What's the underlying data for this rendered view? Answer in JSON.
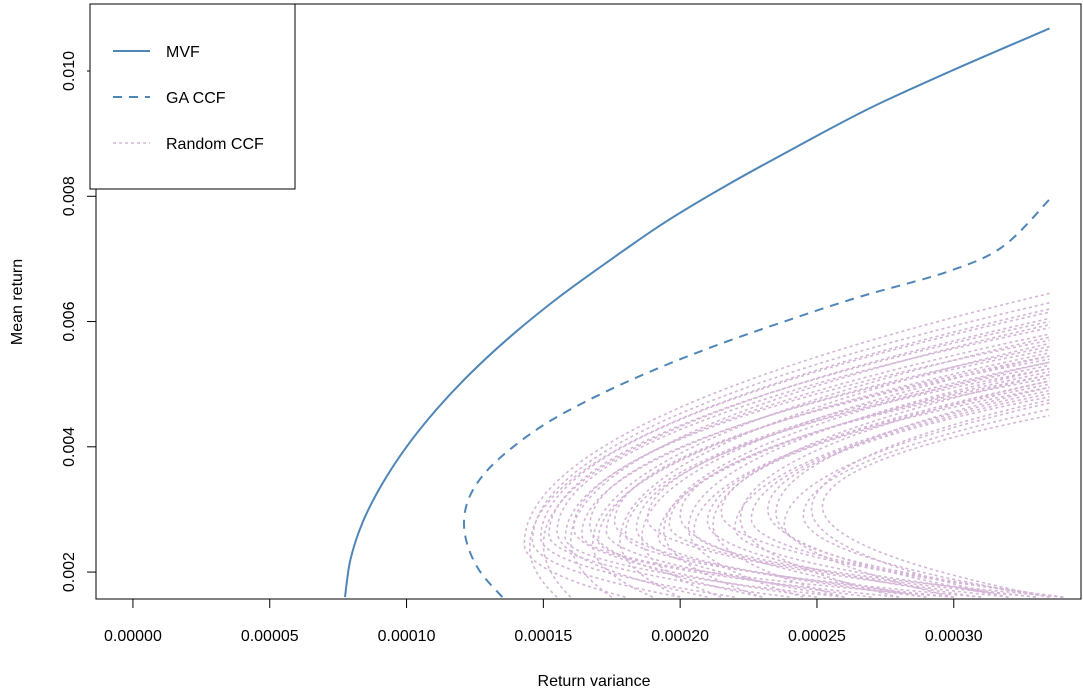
{
  "chart_data": {
    "type": "line",
    "title": "",
    "xlabel": "Return variance",
    "ylabel": "Mean return",
    "xlim": [
      -1.35e-05,
      0.0003465
    ],
    "ylim": [
      0.00157,
      0.01107
    ],
    "x_ticks": [
      0.0,
      5e-05,
      0.0001,
      0.00015,
      0.0002,
      0.00025,
      0.0003
    ],
    "x_tick_labels": [
      "0.00000",
      "0.00005",
      "0.00010",
      "0.00015",
      "0.00020",
      "0.00025",
      "0.00030"
    ],
    "y_ticks": [
      0.002,
      0.004,
      0.006,
      0.008,
      0.01
    ],
    "y_tick_labels": [
      "0.002",
      "0.004",
      "0.006",
      "0.008",
      "0.010"
    ],
    "grid": false,
    "legend_position": "top-left",
    "series": [
      {
        "name": "MVF",
        "style": "solid",
        "color": "#4f86b8",
        "points": [
          [
            7.75e-05,
            0.0016
          ],
          [
            7.95e-05,
            0.0022
          ],
          [
            8.4e-05,
            0.0028
          ],
          [
            9.1e-05,
            0.0034
          ],
          [
            0.0001,
            0.004
          ],
          [
            0.000111,
            0.0046
          ],
          [
            0.000124,
            0.0052
          ],
          [
            0.000139,
            0.0058
          ],
          [
            0.000156,
            0.0064
          ],
          [
            0.000175,
            0.007
          ],
          [
            0.000195,
            0.0076
          ],
          [
            0.000218,
            0.0082
          ],
          [
            0.000243,
            0.0088
          ],
          [
            0.000269,
            0.0094
          ],
          [
            0.000299,
            0.01
          ],
          [
            0.000335,
            0.01068
          ]
        ]
      },
      {
        "name": "GA CCF",
        "style": "dashed",
        "color": "#4f86b8",
        "points": [
          [
            0.000135,
            0.0016
          ],
          [
            0.000127,
            0.002
          ],
          [
            0.0001225,
            0.0024
          ],
          [
            0.000121,
            0.0028
          ],
          [
            0.000123,
            0.0032
          ],
          [
            0.000129,
            0.0036
          ],
          [
            0.000139,
            0.004
          ],
          [
            0.000152,
            0.0044
          ],
          [
            0.000169,
            0.0048
          ],
          [
            0.000189,
            0.0052
          ],
          [
            0.000212,
            0.0056
          ],
          [
            0.000238,
            0.006
          ],
          [
            0.000266,
            0.0064
          ],
          [
            0.000298,
            0.0068
          ],
          [
            0.000318,
            0.0072
          ],
          [
            0.000335,
            0.00795
          ]
        ]
      },
      {
        "name": "Random CCF",
        "style": "dotted",
        "color": "#d4b6d6",
        "curves": [
          {
            "vmin": 0.000143,
            "m0": 0.00245,
            "end_v": 0.000335,
            "end_m": 0.00645,
            "bottom_v": 0.00018
          },
          {
            "vmin": 0.000146,
            "m0": 0.0025,
            "end_v": 0.000335,
            "end_m": 0.0063,
            "bottom_v": 0.0002
          },
          {
            "vmin": 0.000149,
            "m0": 0.00255,
            "end_v": 0.000335,
            "end_m": 0.00615,
            "bottom_v": 0.00022
          },
          {
            "vmin": 0.000152,
            "m0": 0.0026,
            "end_v": 0.000335,
            "end_m": 0.006,
            "bottom_v": 0.00024
          },
          {
            "vmin": 0.000155,
            "m0": 0.00265,
            "end_v": 0.000335,
            "end_m": 0.0059,
            "bottom_v": 0.00021
          },
          {
            "vmin": 0.000158,
            "m0": 0.00255,
            "end_v": 0.000335,
            "end_m": 0.0058,
            "bottom_v": 0.00026
          },
          {
            "vmin": 0.000161,
            "m0": 0.0027,
            "end_v": 0.000335,
            "end_m": 0.0057,
            "bottom_v": 0.00025
          },
          {
            "vmin": 0.000164,
            "m0": 0.0026,
            "end_v": 0.000335,
            "end_m": 0.0056,
            "bottom_v": 0.00028
          },
          {
            "vmin": 0.000167,
            "m0": 0.00275,
            "end_v": 0.000335,
            "end_m": 0.00555,
            "bottom_v": 0.00023
          },
          {
            "vmin": 0.00017,
            "m0": 0.0025,
            "end_v": 0.000335,
            "end_m": 0.0055,
            "bottom_v": 0.0003
          },
          {
            "vmin": 0.000173,
            "m0": 0.00265,
            "end_v": 0.000335,
            "end_m": 0.00545,
            "bottom_v": 0.00027
          },
          {
            "vmin": 0.000176,
            "m0": 0.0028,
            "end_v": 0.000335,
            "end_m": 0.0054,
            "bottom_v": 0.00029
          },
          {
            "vmin": 0.00018,
            "m0": 0.0026,
            "end_v": 0.000335,
            "end_m": 0.00535,
            "bottom_v": 0.00031
          },
          {
            "vmin": 0.000184,
            "m0": 0.0027,
            "end_v": 0.000335,
            "end_m": 0.0053,
            "bottom_v": 0.00026
          },
          {
            "vmin": 0.000188,
            "m0": 0.00285,
            "end_v": 0.000335,
            "end_m": 0.00525,
            "bottom_v": 0.00032
          },
          {
            "vmin": 0.000192,
            "m0": 0.00255,
            "end_v": 0.000335,
            "end_m": 0.0052,
            "bottom_v": 0.0003
          },
          {
            "vmin": 0.000196,
            "m0": 0.00275,
            "end_v": 0.000335,
            "end_m": 0.00515,
            "bottom_v": 0.00033
          },
          {
            "vmin": 0.0002,
            "m0": 0.0029,
            "end_v": 0.000335,
            "end_m": 0.0051,
            "bottom_v": 0.00029
          },
          {
            "vmin": 0.000205,
            "m0": 0.00265,
            "end_v": 0.000335,
            "end_m": 0.00505,
            "bottom_v": 0.00034
          },
          {
            "vmin": 0.00021,
            "m0": 0.0028,
            "end_v": 0.000335,
            "end_m": 0.005,
            "bottom_v": 0.00031
          },
          {
            "vmin": 0.000215,
            "m0": 0.00295,
            "end_v": 0.000335,
            "end_m": 0.00495,
            "bottom_v": 0.00034
          },
          {
            "vmin": 0.00022,
            "m0": 0.0027,
            "end_v": 0.000335,
            "end_m": 0.0049,
            "bottom_v": 0.00033
          },
          {
            "vmin": 0.000226,
            "m0": 0.00285,
            "end_v": 0.000335,
            "end_m": 0.00485,
            "bottom_v": 0.00034
          },
          {
            "vmin": 0.000232,
            "m0": 0.003,
            "end_v": 0.000335,
            "end_m": 0.0048,
            "bottom_v": 0.00032
          },
          {
            "vmin": 0.000238,
            "m0": 0.00275,
            "end_v": 0.000335,
            "end_m": 0.0047,
            "bottom_v": 0.00034
          },
          {
            "vmin": 0.000245,
            "m0": 0.0029,
            "end_v": 0.000335,
            "end_m": 0.0046,
            "bottom_v": 0.000335
          },
          {
            "vmin": 0.000252,
            "m0": 0.00305,
            "end_v": 0.000335,
            "end_m": 0.0045,
            "bottom_v": 0.000335
          },
          {
            "vmin": 0.000145,
            "m0": 0.0024,
            "end_v": 0.000335,
            "end_m": 0.0062,
            "bottom_v": 0.000155
          },
          {
            "vmin": 0.00015,
            "m0": 0.00245,
            "end_v": 0.000335,
            "end_m": 0.00605,
            "bottom_v": 0.00016
          },
          {
            "vmin": 0.00016,
            "m0": 0.0025,
            "end_v": 0.000335,
            "end_m": 0.00595,
            "bottom_v": 0.000175
          },
          {
            "vmin": 0.000168,
            "m0": 0.00245,
            "end_v": 0.000335,
            "end_m": 0.00575,
            "bottom_v": 0.00019
          },
          {
            "vmin": 0.000178,
            "m0": 0.0025,
            "end_v": 0.000335,
            "end_m": 0.00565,
            "bottom_v": 0.0002
          },
          {
            "vmin": 0.000186,
            "m0": 0.00255,
            "end_v": 0.000335,
            "end_m": 0.00545,
            "bottom_v": 0.000215
          },
          {
            "vmin": 0.000194,
            "m0": 0.00265,
            "end_v": 0.000335,
            "end_m": 0.00535,
            "bottom_v": 0.00023
          },
          {
            "vmin": 0.000203,
            "m0": 0.0027,
            "end_v": 0.000335,
            "end_m": 0.00525,
            "bottom_v": 0.000245
          },
          {
            "vmin": 0.000212,
            "m0": 0.00275,
            "end_v": 0.000335,
            "end_m": 0.00515,
            "bottom_v": 0.00026
          },
          {
            "vmin": 0.000222,
            "m0": 0.00285,
            "end_v": 0.000335,
            "end_m": 0.00505,
            "bottom_v": 0.00028
          },
          {
            "vmin": 0.000235,
            "m0": 0.00295,
            "end_v": 0.000335,
            "end_m": 0.00495,
            "bottom_v": 0.0003
          },
          {
            "vmin": 0.000248,
            "m0": 0.003,
            "end_v": 0.000335,
            "end_m": 0.00475,
            "bottom_v": 0.00032
          }
        ]
      }
    ]
  },
  "legend": {
    "items": [
      {
        "label": "MVF",
        "style": "solid",
        "color": "#4f86b8"
      },
      {
        "label": "GA CCF",
        "style": "dashed",
        "color": "#4f86b8"
      },
      {
        "label": "Random CCF",
        "style": "dotted",
        "color": "#d4b6d6"
      }
    ]
  }
}
